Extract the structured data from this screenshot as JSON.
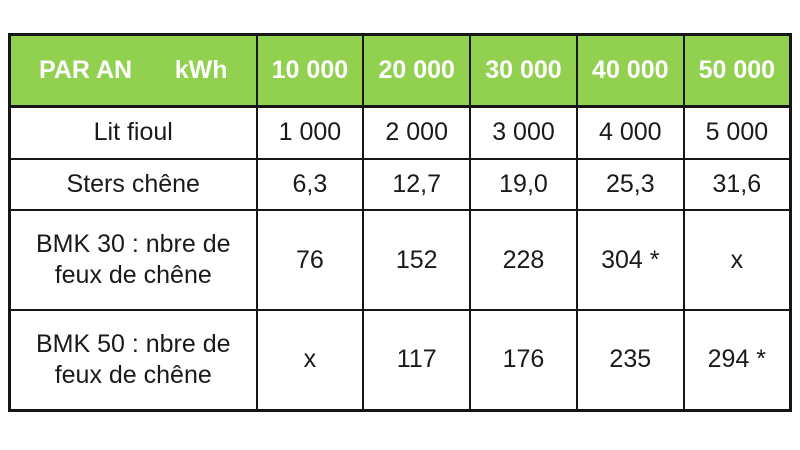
{
  "chart_data": {
    "type": "table",
    "header": {
      "corner_left": "PAR AN",
      "corner_right": "kWh",
      "value_columns": [
        "10 000",
        "20 000",
        "30 000",
        "40 000",
        "50 000"
      ]
    },
    "rows": [
      {
        "label": "Lit fioul",
        "values": [
          "1 000",
          "2 000",
          "3 000",
          "4 000",
          "5 000"
        ]
      },
      {
        "label": "Sters chêne",
        "values": [
          "6,3",
          "12,7",
          "19,0",
          "25,3",
          "31,6"
        ]
      },
      {
        "label": "BMK 30 : nbre de feux de chêne",
        "values": [
          "76",
          "152",
          "228",
          "304 *",
          "x"
        ]
      },
      {
        "label": "BMK 50 : nbre de feux de chêne",
        "values": [
          "x",
          "117",
          "176",
          "235",
          "294 *"
        ]
      }
    ]
  },
  "colors": {
    "header_bg": "#92D050",
    "header_text": "#FFFFFF",
    "border": "#161616",
    "body_text": "#1A1A1A",
    "page_bg": "#FFFFFF"
  }
}
